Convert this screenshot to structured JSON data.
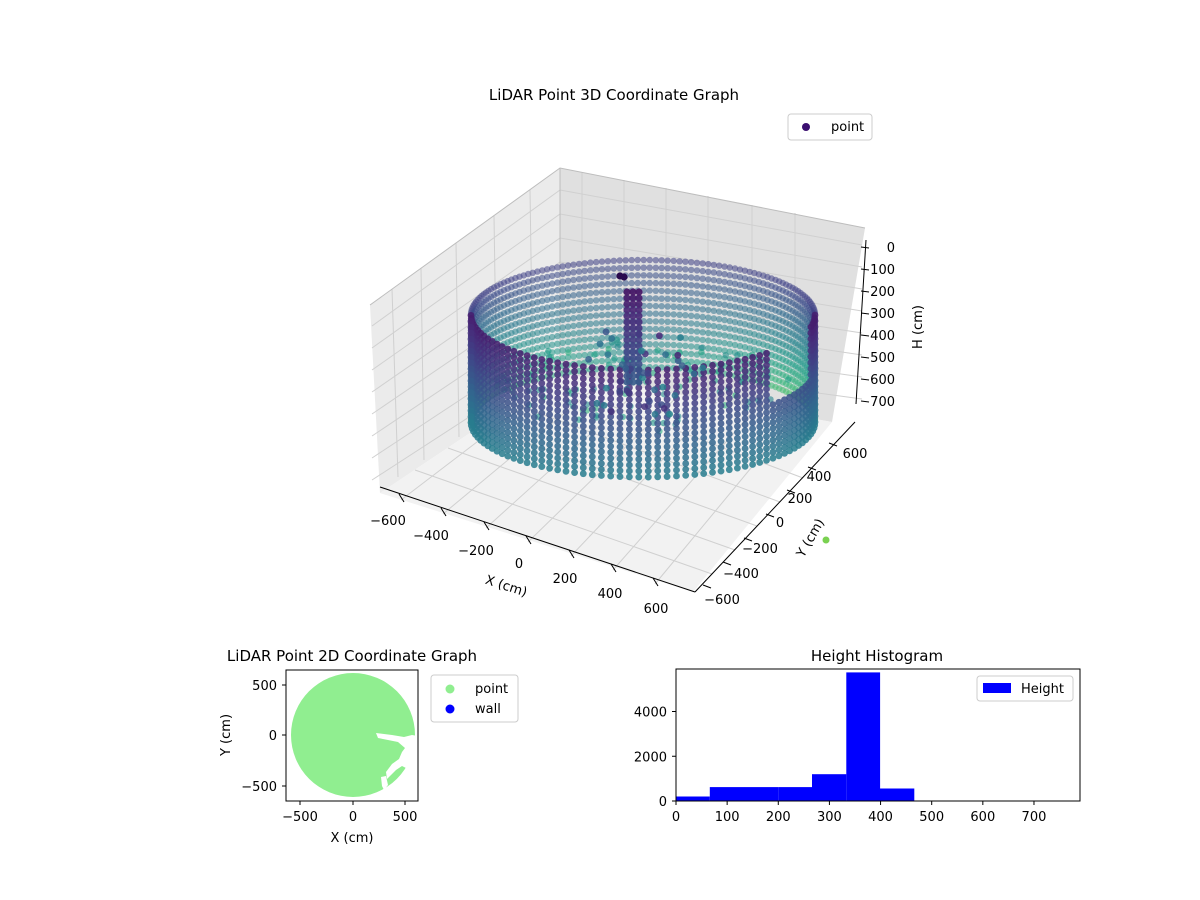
{
  "chart_data": [
    {
      "id": "lidar-3d",
      "type": "scatter",
      "subtype": "3d",
      "title": "LiDAR Point 3D Coordinate Graph",
      "xlabel": "X (cm)",
      "ylabel": "Y (cm)",
      "zlabel": "H (cm)",
      "xlim": [
        -700,
        700
      ],
      "ylim": [
        -700,
        700
      ],
      "zlim": [
        0,
        780
      ],
      "z_inverted": true,
      "xticks": [
        "−600",
        "−400",
        "−200",
        "0",
        "200",
        "400",
        "600"
      ],
      "yticks": [
        "−600",
        "−400",
        "−200",
        "0",
        "200",
        "400",
        "600"
      ],
      "zticks": [
        "0",
        "100",
        "200",
        "300",
        "400",
        "500",
        "600",
        "700"
      ],
      "legend": {
        "position": "top-right",
        "entries": [
          {
            "label": "point",
            "color": "#3b0f70"
          }
        ]
      },
      "colormap": "viridis",
      "grid": true,
      "series": [
        {
          "name": "point",
          "shape": "cylindrical-wall",
          "radius_cm": 580,
          "height_range_cm": [
            70,
            460
          ]
        }
      ]
    },
    {
      "id": "lidar-2d",
      "type": "scatter",
      "title": "LiDAR Point 2D Coordinate Graph",
      "xlabel": "X (cm)",
      "ylabel": "Y (cm)",
      "xlim": [
        -680,
        680
      ],
      "ylim": [
        -680,
        680
      ],
      "xticks": [
        "−500",
        "0",
        "500"
      ],
      "yticks": [
        "500",
        "0",
        "−500"
      ],
      "legend": {
        "position": "outside-right",
        "entries": [
          {
            "label": "point",
            "color": "#90ee90"
          },
          {
            "label": "wall",
            "color": "#0000ff"
          }
        ]
      },
      "series": [
        {
          "name": "point",
          "color": "#90ee90",
          "shape": "filled-disk",
          "radius_cm": 600
        },
        {
          "name": "wall",
          "color": "#0000ff"
        }
      ]
    },
    {
      "id": "height-histogram",
      "type": "bar",
      "subtype": "histogram",
      "title": "Height Histogram",
      "xlim": [
        0,
        790
      ],
      "ylim": [
        0,
        5900
      ],
      "xticks": [
        "0",
        "100",
        "200",
        "300",
        "400",
        "500",
        "600",
        "700"
      ],
      "yticks": [
        "0",
        "2000",
        "4000"
      ],
      "legend": {
        "position": "top-right",
        "entries": [
          {
            "label": "Height",
            "color": "#0000ff"
          }
        ]
      },
      "bin_edges": [
        0,
        66,
        133,
        200,
        266,
        333,
        399,
        466,
        532,
        599,
        665,
        732
      ],
      "values": [
        200,
        620,
        620,
        620,
        1200,
        5750,
        560,
        0,
        0,
        0,
        0
      ],
      "color": "#0000ff"
    }
  ]
}
